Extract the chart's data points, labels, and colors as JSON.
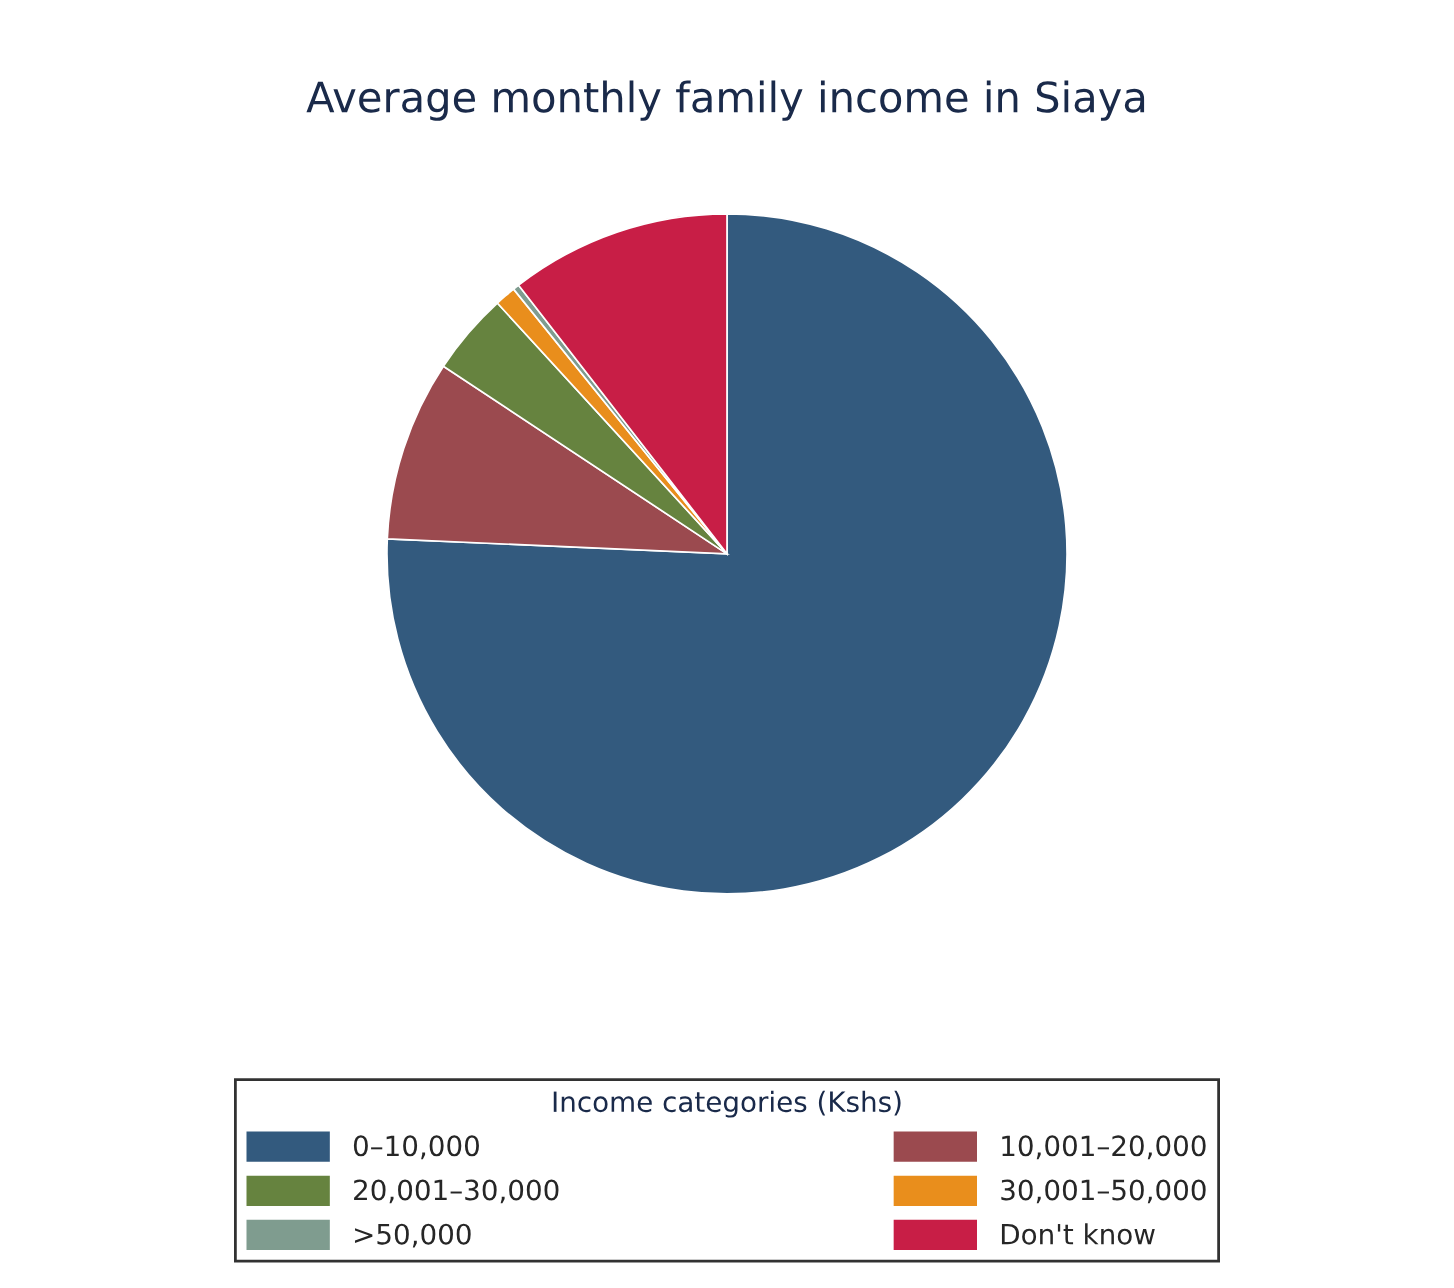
{
  "chart_data": {
    "type": "pie",
    "title": "Average monthly family income in Siaya",
    "legend_title": "Income categories (Kshs)",
    "legend": "bottom",
    "categories": [
      "0–10,000",
      "10,001–20,000",
      "20,001–30,000",
      "30,001–50,000",
      ">50,000",
      "Don't know"
    ],
    "values": [
      75.7,
      8.6,
      3.9,
      1.0,
      0.3,
      10.5
    ],
    "colors": [
      "#335a7e",
      "#9b4a4f",
      "#66833f",
      "#e98e1c",
      "#7f9c8f",
      "#c81e46"
    ]
  }
}
